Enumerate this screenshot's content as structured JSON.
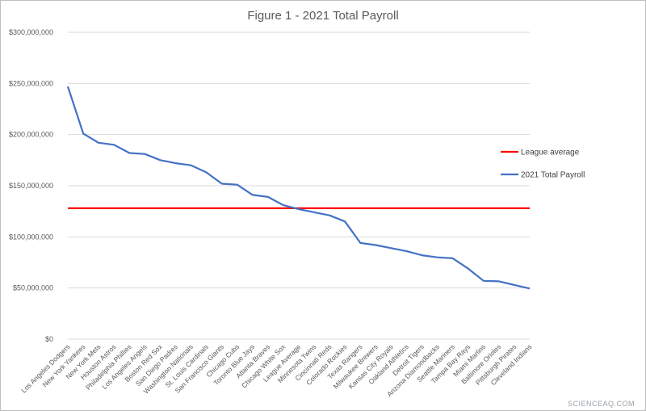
{
  "chart_data": {
    "type": "line",
    "title": "Figure 1 - 2021 Total Payroll",
    "ylim": [
      0,
      300000000
    ],
    "yticks": [
      "$0",
      "$50,000,000",
      "$100,000,000",
      "$150,000,000",
      "$200,000,000",
      "$250,000,000",
      "$300,000,000"
    ],
    "ytick_values": [
      0,
      50000000,
      100000000,
      150000000,
      200000000,
      250000000,
      300000000
    ],
    "categories": [
      "Los Angeles Dodgers",
      "New York Yankees",
      "New York Mets",
      "Houston Astros",
      "Philadelphia Phillies",
      "Los Angeles Angels",
      "Boston Red Sox",
      "San Diego Padres",
      "Washington Nationals",
      "St. Louis Cardinals",
      "San Francisco Giants",
      "Chicago Cubs",
      "Toronto Blue Jays",
      "Atlanta Braves",
      "Chicago White Sox",
      "League Average",
      "Minnesota Twins",
      "Cincinnati Reds",
      "Colorado Rockies",
      "Texas Rangers",
      "Milwaukee Brewers",
      "Kansas City Royals",
      "Oakland Athletics",
      "Detroit Tigers",
      "Arizona Diamondbacks",
      "Seattle Mariners",
      "Tampa Bay Rays",
      "Miami Marlins",
      "Baltimore Orioles",
      "Pittsburgh Pirates",
      "Cleveland Indians"
    ],
    "series": [
      {
        "name": "League average",
        "color": "#ff0000",
        "values": [
          128000000,
          128000000,
          128000000,
          128000000,
          128000000,
          128000000,
          128000000,
          128000000,
          128000000,
          128000000,
          128000000,
          128000000,
          128000000,
          128000000,
          128000000,
          128000000,
          128000000,
          128000000,
          128000000,
          128000000,
          128000000,
          128000000,
          128000000,
          128000000,
          128000000,
          128000000,
          128000000,
          128000000,
          128000000,
          128000000,
          128000000
        ]
      },
      {
        "name": "2021 Total Payroll",
        "color": "#4472c4",
        "values": [
          247000000,
          201000000,
          192000000,
          190000000,
          182000000,
          181000000,
          175000000,
          172000000,
          170000000,
          163000000,
          152000000,
          151000000,
          141000000,
          139000000,
          131000000,
          127000000,
          124000000,
          121000000,
          115000000,
          94000000,
          92000000,
          89000000,
          86000000,
          82000000,
          80000000,
          79000000,
          69000000,
          57000000,
          56500000,
          53000000,
          49500000
        ]
      }
    ],
    "grid": true,
    "legend_position": "right"
  },
  "watermark": "SCIENCEAQ.COM"
}
